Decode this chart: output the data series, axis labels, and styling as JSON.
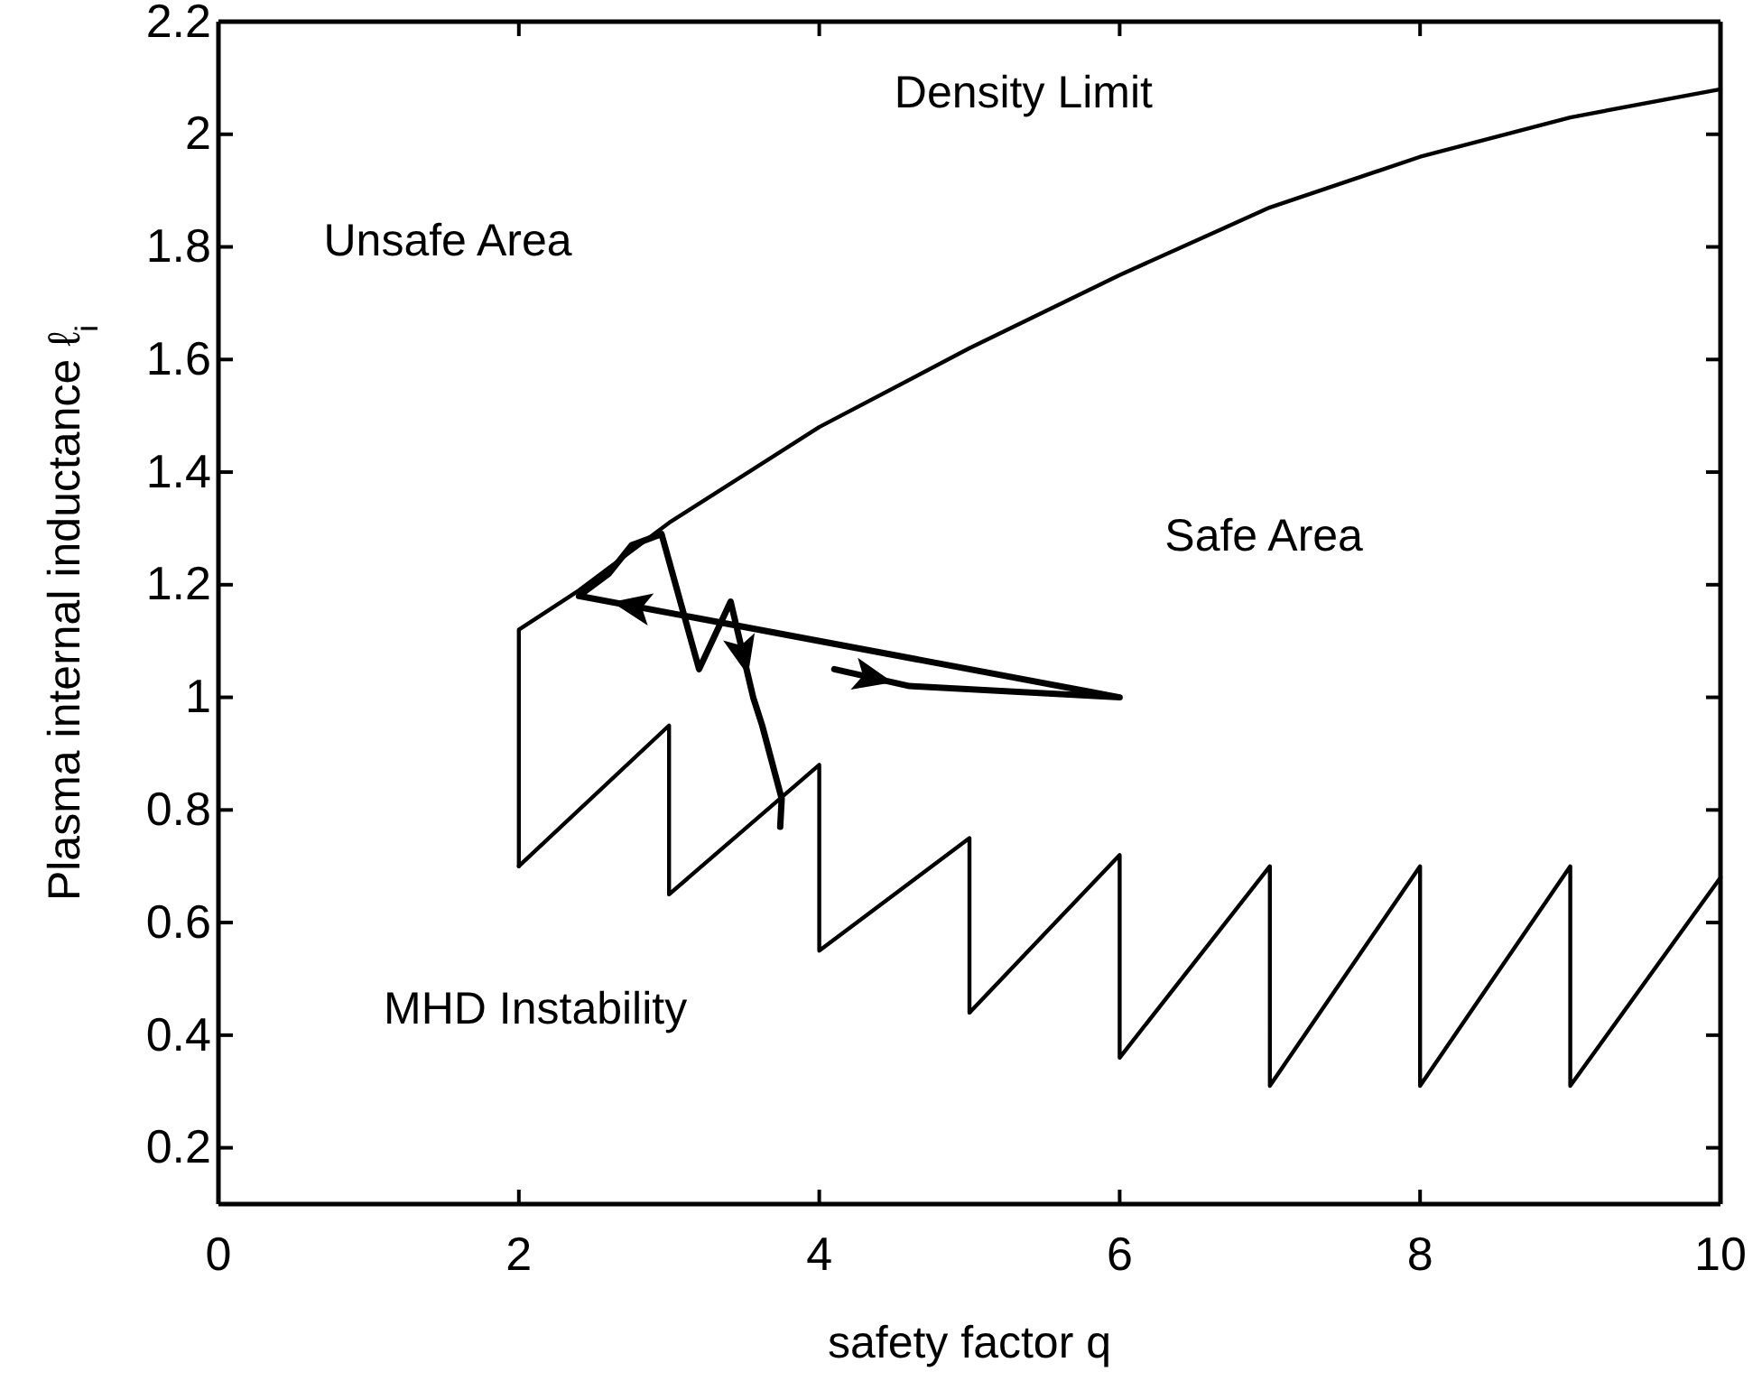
{
  "chart_data": {
    "type": "line",
    "xlabel": "safety factor q",
    "ylabel": "Plasma internal inductance ℓ$_{i}$",
    "xlim": [
      0,
      10
    ],
    "ylim": [
      0.1,
      2.2
    ],
    "xticks": [
      0,
      2,
      4,
      6,
      8,
      10
    ],
    "yticks": [
      0.2,
      0.4,
      0.6,
      0.8,
      1,
      1.2,
      1.4,
      1.6,
      1.8,
      2,
      2.2
    ],
    "annotations": [
      "Density Limit",
      "Unsafe Area",
      "Safe Area",
      "MHD Instability"
    ],
    "series": [
      {
        "color": "#000000",
        "x": [
          2,
          2,
          2.4,
          3,
          4,
          5,
          6,
          7,
          8,
          9,
          10
        ],
        "values": [
          0.7,
          1.12,
          1.19,
          1.31,
          1.48,
          1.62,
          1.75,
          1.87,
          1.96,
          2.03,
          2.08
        ]
      },
      {
        "color": "#000000",
        "x": [
          2,
          3,
          3,
          4,
          4,
          5,
          5,
          6,
          6,
          7,
          7,
          8,
          8,
          9,
          9,
          10
        ],
        "values": [
          0.7,
          0.95,
          0.65,
          0.88,
          0.55,
          0.75,
          0.44,
          0.72,
          0.36,
          0.7,
          0.31,
          0.7,
          0.31,
          0.7,
          0.31,
          0.68
        ]
      },
      {
        "color": "#000000",
        "x": [
          4.1,
          4.6,
          6,
          2.4,
          2.6,
          2.75,
          2.95,
          3.2,
          3.41,
          3.56,
          3.62,
          3.75,
          3.74
        ],
        "values": [
          1.05,
          1.02,
          1.0,
          1.18,
          1.22,
          1.27,
          1.29,
          1.05,
          1.17,
          1.0,
          0.95,
          0.82,
          0.77
        ]
      }
    ]
  }
}
